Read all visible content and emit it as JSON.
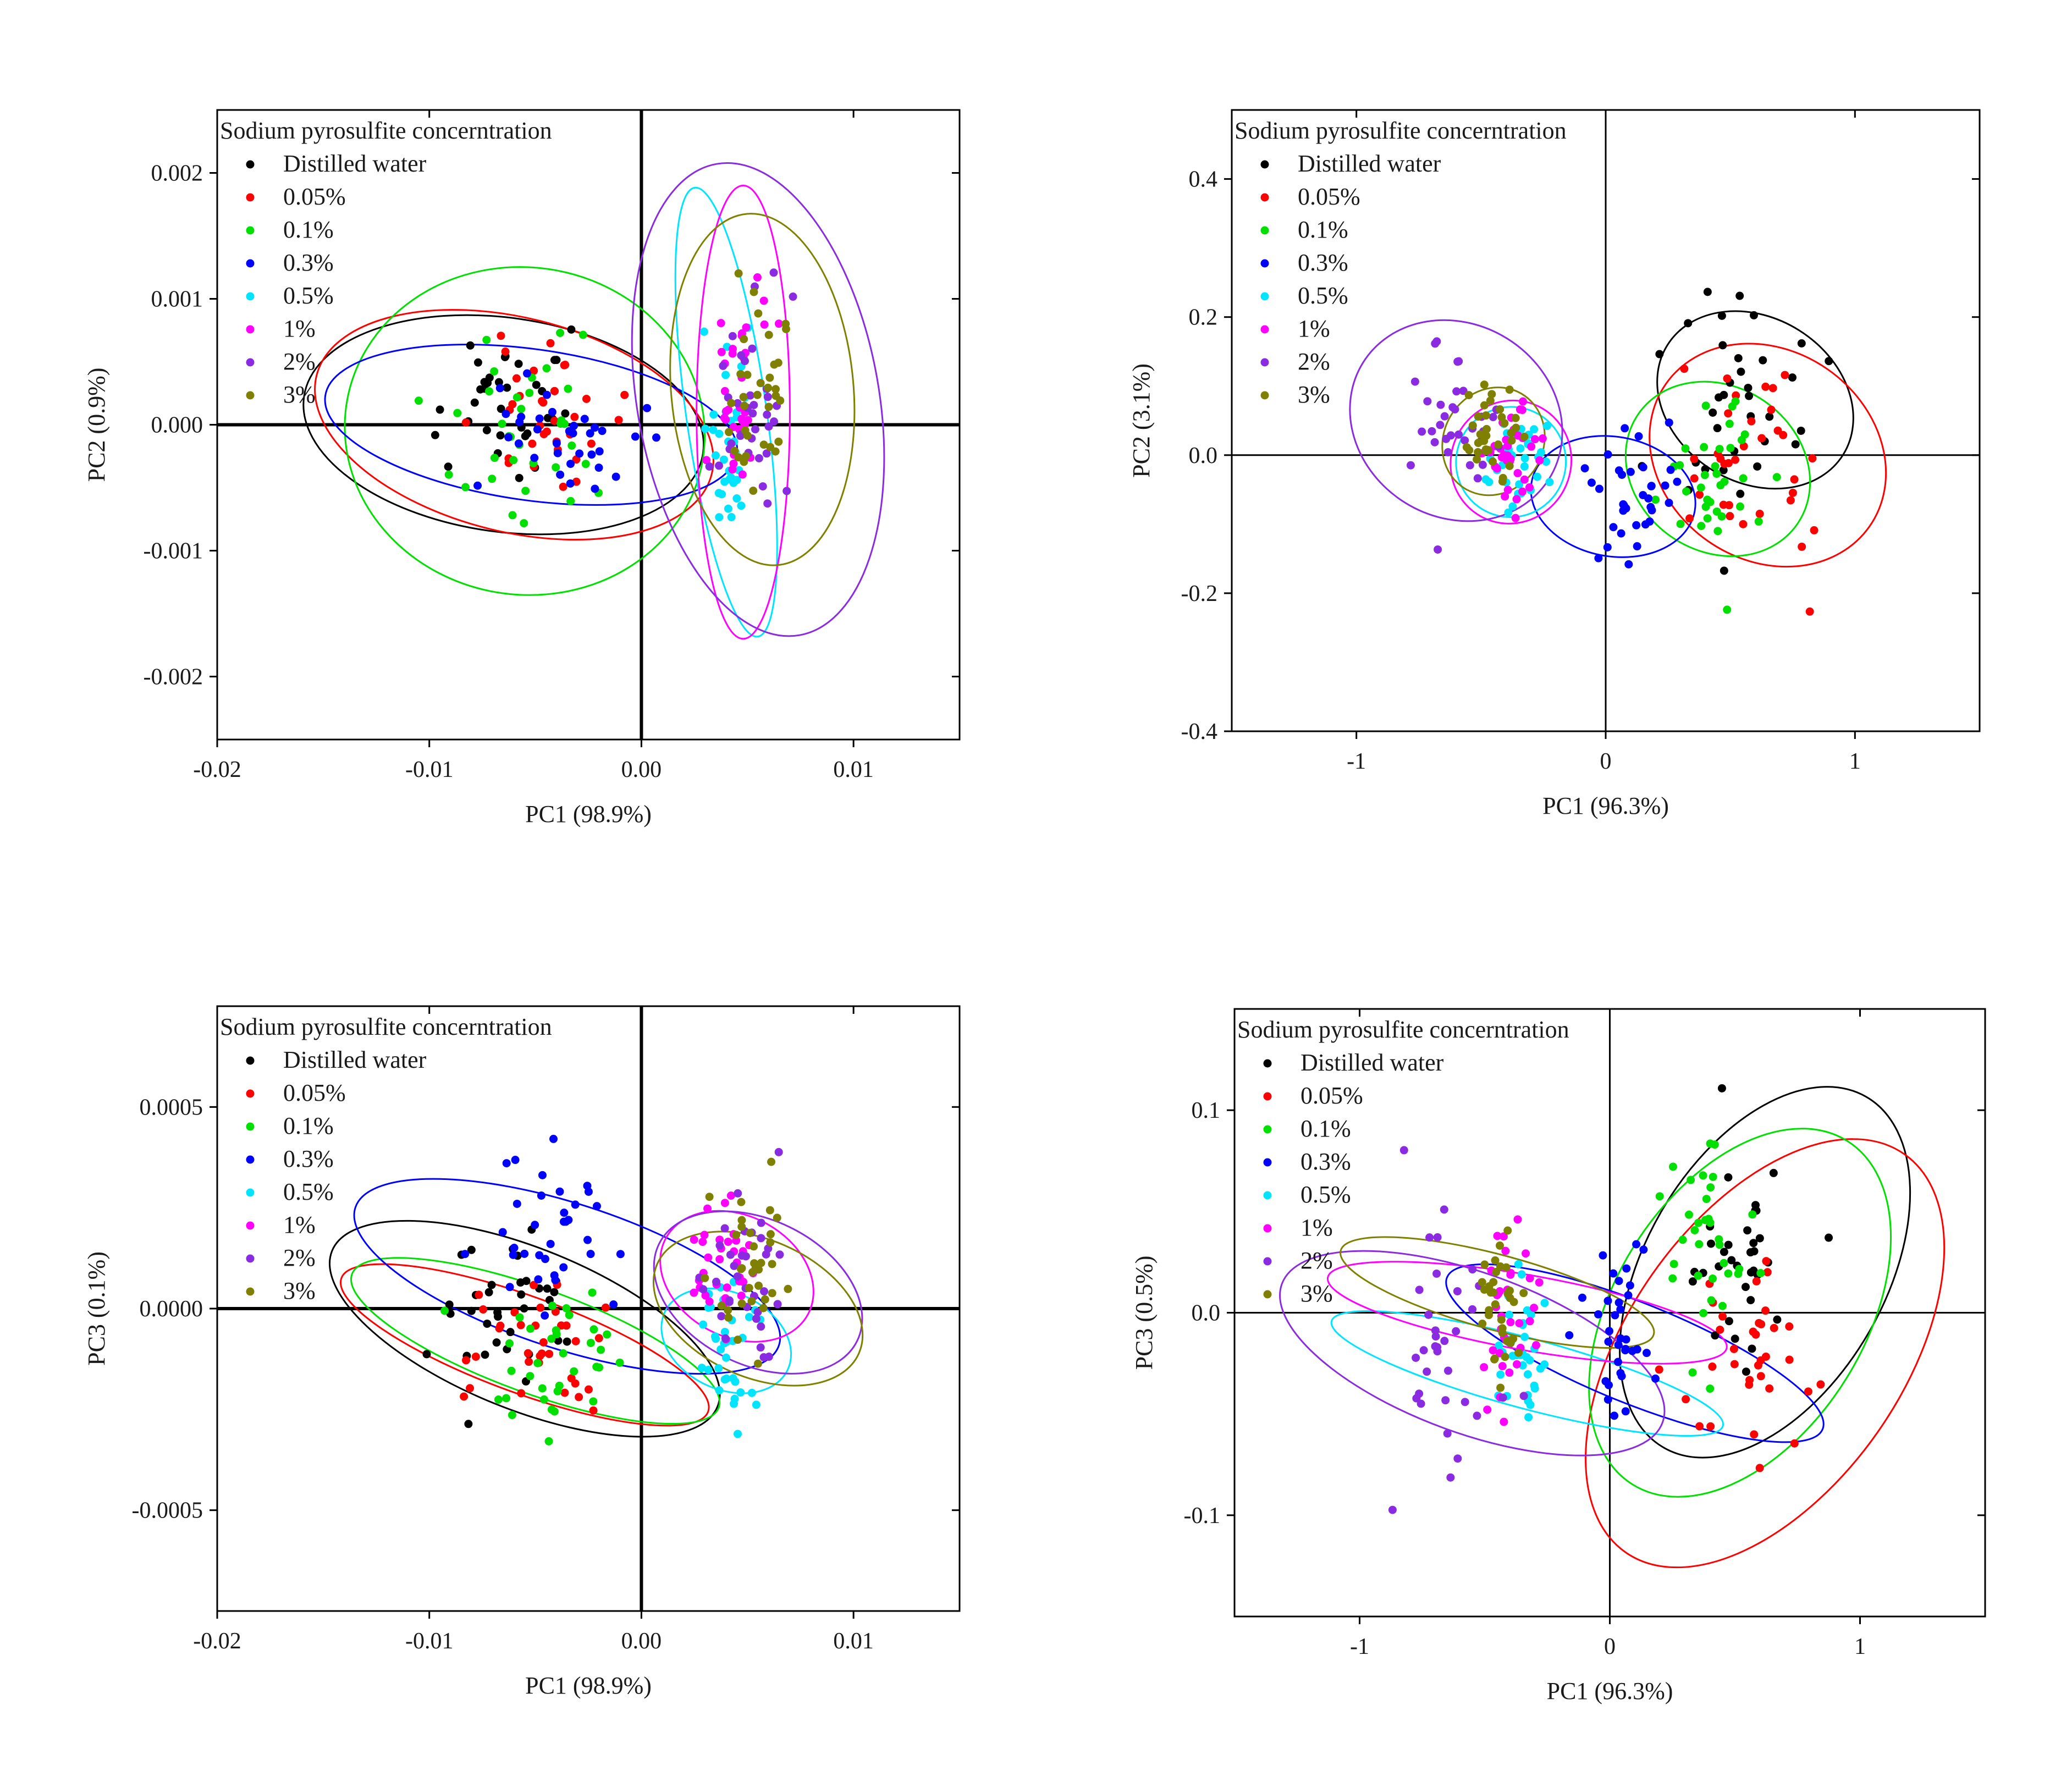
{
  "figure": {
    "legend_title": "Sodium pyrosulfite concerntration",
    "groups": [
      {
        "label": "Distilled water",
        "color": "#000000"
      },
      {
        "label": "0.05%",
        "color": "#ff0000"
      },
      {
        "label": "0.1%",
        "color": "#00e000"
      },
      {
        "label": "0.3%",
        "color": "#0000ff"
      },
      {
        "label": "0.5%",
        "color": "#00e5ff"
      },
      {
        "label": "1%",
        "color": "#ff00ff"
      },
      {
        "label": "2%",
        "color": "#8a2be2"
      },
      {
        "label": "3%",
        "color": "#808000"
      }
    ]
  },
  "chart_data": [
    {
      "type": "scatter",
      "id": "top-left",
      "xlabel": "PC1 (98.9%)",
      "ylabel": "PC2 (0.9%)",
      "xlim": [
        -0.02,
        0.015
      ],
      "ylim": [
        -0.0025,
        0.0025
      ],
      "xticks": [
        -0.02,
        -0.01,
        0.0,
        0.01
      ],
      "xtick_labels": [
        "-0.02",
        "-0.01",
        "0.00",
        "0.01"
      ],
      "yticks": [
        -0.002,
        -0.001,
        0.0,
        0.001,
        0.002
      ],
      "ytick_labels": [
        "-0.002",
        "-0.001",
        "0.000",
        "0.001",
        "0.002"
      ],
      "zero_lines": "bold",
      "series": [
        {
          "name": "Distilled water",
          "center": [
            -0.0065,
            0.0002
          ],
          "spread": [
            0.003,
            0.0003
          ],
          "count": 34,
          "ellipse": {
            "center": [
              -0.0065,
              0.0
            ],
            "rx": 0.0095,
            "ry": 0.00085,
            "angle": -8
          }
        },
        {
          "name": "0.05%",
          "center": [
            -0.0045,
            0.0001
          ],
          "spread": [
            0.003,
            0.0003
          ],
          "count": 34,
          "ellipse": {
            "center": [
              -0.006,
              0.0
            ],
            "rx": 0.0096,
            "ry": 0.00085,
            "angle": -14
          }
        },
        {
          "name": "0.1%",
          "center": [
            -0.0055,
            -0.0001
          ],
          "spread": [
            0.0033,
            0.0004
          ],
          "count": 34,
          "ellipse": {
            "center": [
              -0.0055,
              -5e-05
            ],
            "rx": 0.0085,
            "ry": 0.0013,
            "angle": -8
          }
        },
        {
          "name": "0.3%",
          "center": [
            -0.0035,
            -0.0001
          ],
          "spread": [
            0.0032,
            0.00025
          ],
          "count": 34,
          "ellipse": {
            "center": [
              -0.0052,
              0.0
            ],
            "rx": 0.0098,
            "ry": 0.0006,
            "angle": -8
          }
        },
        {
          "name": "0.5%",
          "center": [
            0.0042,
            -0.0001
          ],
          "spread": [
            0.0011,
            0.0004
          ],
          "count": 34,
          "ellipse": {
            "center": [
              0.004,
              0.0001
            ],
            "rx": 0.0019,
            "ry": 0.0018,
            "angle": 8
          }
        },
        {
          "name": "1%",
          "center": [
            0.0045,
            0.0002
          ],
          "spread": [
            0.0011,
            0.00045
          ],
          "count": 34,
          "ellipse": {
            "center": [
              0.0048,
              0.0001
            ],
            "rx": 0.0022,
            "ry": 0.0018,
            "angle": 0
          }
        },
        {
          "name": "2%",
          "center": [
            0.0052,
            0.0002
          ],
          "spread": [
            0.0014,
            0.00045
          ],
          "count": 34,
          "ellipse": {
            "center": [
              0.0055,
              0.0002
            ],
            "rx": 0.0057,
            "ry": 0.0019,
            "angle": 10
          }
        },
        {
          "name": "3%",
          "center": [
            0.0055,
            0.0003
          ],
          "spread": [
            0.0012,
            0.00045
          ],
          "count": 34,
          "ellipse": {
            "center": [
              0.0057,
              0.00028
            ],
            "rx": 0.0043,
            "ry": 0.0014,
            "angle": 5
          }
        }
      ]
    },
    {
      "type": "scatter",
      "id": "top-right",
      "xlabel": "PC1 (96.3%)",
      "ylabel": "PC2 (3.1%)",
      "xlim": [
        -1.5,
        1.5
      ],
      "ylim": [
        -0.4,
        0.5
      ],
      "xticks": [
        -1,
        0,
        1
      ],
      "xtick_labels": [
        "-1",
        "0",
        "1"
      ],
      "yticks": [
        -0.4,
        -0.2,
        0.0,
        0.2,
        0.4
      ],
      "ytick_labels": [
        "-0.4",
        "-0.2",
        "0.0",
        "0.2",
        "0.4"
      ],
      "zero_lines": "thin",
      "series": [
        {
          "name": "Distilled water",
          "center": [
            0.55,
            0.05
          ],
          "spread": [
            0.22,
            0.1
          ],
          "count": 34,
          "ellipse": {
            "center": [
              0.6,
              0.08
            ],
            "rx": 0.33,
            "ry": 0.15,
            "angle": 58
          }
        },
        {
          "name": "0.05%",
          "center": [
            0.6,
            0.0
          ],
          "spread": [
            0.2,
            0.09
          ],
          "count": 34,
          "ellipse": {
            "center": [
              0.65,
              0.0
            ],
            "rx": 0.42,
            "ry": 0.18,
            "angle": 55
          }
        },
        {
          "name": "0.1%",
          "center": [
            0.45,
            -0.03
          ],
          "spread": [
            0.18,
            0.07
          ],
          "count": 34,
          "ellipse": {
            "center": [
              0.45,
              -0.02
            ],
            "rx": 0.33,
            "ry": 0.14,
            "angle": 55
          }
        },
        {
          "name": "0.3%",
          "center": [
            0.1,
            -0.05
          ],
          "spread": [
            0.15,
            0.07
          ],
          "count": 34,
          "ellipse": {
            "center": [
              0.03,
              -0.06
            ],
            "rx": 0.24,
            "ry": 0.12,
            "angle": 80
          }
        },
        {
          "name": "0.5%",
          "center": [
            -0.35,
            -0.02
          ],
          "spread": [
            0.1,
            0.04
          ],
          "count": 34,
          "ellipse": {
            "center": [
              -0.38,
              -0.01
            ],
            "rx": 0.22,
            "ry": 0.08,
            "angle": -30
          }
        },
        {
          "name": "1%",
          "center": [
            -0.4,
            0.0
          ],
          "spread": [
            0.1,
            0.05
          ],
          "count": 34,
          "ellipse": {
            "center": [
              -0.38,
              -0.01
            ],
            "rx": 0.24,
            "ry": 0.09,
            "angle": -30
          }
        },
        {
          "name": "2%",
          "center": [
            -0.6,
            0.05
          ],
          "spread": [
            0.2,
            0.07
          ],
          "count": 34,
          "ellipse": {
            "center": [
              -0.6,
              0.05
            ],
            "rx": 0.44,
            "ry": 0.14,
            "angle": -32
          }
        },
        {
          "name": "3%",
          "center": [
            -0.45,
            0.02
          ],
          "spread": [
            0.09,
            0.04
          ],
          "count": 34,
          "ellipse": {
            "center": [
              -0.45,
              0.02
            ],
            "rx": 0.2,
            "ry": 0.08,
            "angle": -30
          }
        }
      ]
    },
    {
      "type": "scatter",
      "id": "bottom-left",
      "xlabel": "PC1 (98.9%)",
      "ylabel": "PC3 (0.1%)",
      "xlim": [
        -0.02,
        0.015
      ],
      "ylim": [
        -0.00075,
        0.00075
      ],
      "xticks": [
        -0.02,
        -0.01,
        0.0,
        0.01
      ],
      "xtick_labels": [
        "-0.02",
        "-0.01",
        "0.00",
        "0.01"
      ],
      "yticks": [
        -0.0005,
        0.0,
        0.0005
      ],
      "ytick_labels": [
        "-0.0005",
        "0.0000",
        "0.0005"
      ],
      "zero_lines": "bold",
      "series": [
        {
          "name": "Distilled water",
          "center": [
            -0.006,
            0.0
          ],
          "spread": [
            0.003,
            0.00012
          ],
          "count": 34,
          "ellipse": {
            "center": [
              -0.0055,
              -5e-05
            ],
            "rx": 0.0098,
            "ry": 0.0002,
            "angle": -22
          }
        },
        {
          "name": "0.05%",
          "center": [
            -0.005,
            -0.0001
          ],
          "spread": [
            0.003,
            0.0001
          ],
          "count": 34,
          "ellipse": {
            "center": [
              -0.0055,
              -9e-05
            ],
            "rx": 0.0092,
            "ry": 0.00012,
            "angle": -20
          }
        },
        {
          "name": "0.1%",
          "center": [
            -0.004,
            -0.0001
          ],
          "spread": [
            0.003,
            0.0001
          ],
          "count": 34,
          "ellipse": {
            "center": [
              -0.005,
              -8e-05
            ],
            "rx": 0.0092,
            "ry": 0.00013,
            "angle": -20
          }
        },
        {
          "name": "0.3%",
          "center": [
            -0.004,
            0.0002
          ],
          "spread": [
            0.003,
            0.00012
          ],
          "count": 34,
          "ellipse": {
            "center": [
              -0.0035,
              8e-05
            ],
            "rx": 0.0105,
            "ry": 0.00018,
            "angle": -18
          }
        },
        {
          "name": "0.5%",
          "center": [
            0.004,
            -0.0001
          ],
          "spread": [
            0.0012,
            0.0001
          ],
          "count": 34,
          "ellipse": {
            "center": [
              0.004,
              -8e-05
            ],
            "rx": 0.0032,
            "ry": 0.00012,
            "angle": -25
          }
        },
        {
          "name": "1%",
          "center": [
            0.004,
            0.0001
          ],
          "spread": [
            0.0012,
            0.0001
          ],
          "count": 34,
          "ellipse": {
            "center": [
              0.0045,
              8e-05
            ],
            "rx": 0.0038,
            "ry": 0.00015,
            "angle": -28
          }
        },
        {
          "name": "2%",
          "center": [
            0.005,
            0.0001
          ],
          "spread": [
            0.0015,
            0.00012
          ],
          "count": 34,
          "ellipse": {
            "center": [
              0.0055,
              4e-05
            ],
            "rx": 0.0052,
            "ry": 0.00018,
            "angle": -26
          }
        },
        {
          "name": "3%",
          "center": [
            0.005,
            0.0001
          ],
          "spread": [
            0.0015,
            0.00012
          ],
          "count": 34,
          "ellipse": {
            "center": [
              0.0055,
              0.0
            ],
            "rx": 0.0052,
            "ry": 0.00017,
            "angle": -24
          }
        }
      ]
    },
    {
      "type": "scatter",
      "id": "bottom-right",
      "xlabel": "PC1 (96.3%)",
      "ylabel": "PC3 (0.5%)",
      "xlim": [
        -1.5,
        1.5
      ],
      "ylim": [
        -0.15,
        0.15
      ],
      "xticks": [
        -1,
        0,
        1
      ],
      "xtick_labels": [
        "-1",
        "0",
        "1"
      ],
      "yticks": [
        -0.1,
        0.0,
        0.1
      ],
      "ytick_labels": [
        "-0.1",
        "0.0",
        "0.1"
      ],
      "zero_lines": "thin",
      "series": [
        {
          "name": "Distilled water",
          "center": [
            0.55,
            0.03
          ],
          "spread": [
            0.2,
            0.03
          ],
          "count": 34,
          "ellipse": {
            "center": [
              0.62,
              0.02
            ],
            "rx": 0.48,
            "ry": 0.1,
            "angle": -30
          }
        },
        {
          "name": "0.05%",
          "center": [
            0.55,
            -0.02
          ],
          "spread": [
            0.2,
            0.03
          ],
          "count": 34,
          "ellipse": {
            "center": [
              0.62,
              -0.02
            ],
            "rx": 0.55,
            "ry": 0.12,
            "angle": -35
          }
        },
        {
          "name": "0.1%",
          "center": [
            0.4,
            0.02
          ],
          "spread": [
            0.2,
            0.03
          ],
          "count": 34,
          "ellipse": {
            "center": [
              0.52,
              0.0
            ],
            "rx": 0.5,
            "ry": 0.1,
            "angle": -32
          }
        },
        {
          "name": "0.3%",
          "center": [
            0.05,
            -0.01
          ],
          "spread": [
            0.15,
            0.03
          ],
          "count": 34,
          "ellipse": {
            "center": [
              0.1,
              -0.02
            ],
            "rx": 0.2,
            "ry": 0.1,
            "angle": 68
          }
        },
        {
          "name": "0.5%",
          "center": [
            -0.35,
            -0.02
          ],
          "spread": [
            0.1,
            0.02
          ],
          "count": 34,
          "ellipse": {
            "center": [
              -0.33,
              -0.03
            ],
            "rx": 0.14,
            "ry": 0.1,
            "angle": 75
          }
        },
        {
          "name": "1%",
          "center": [
            -0.4,
            0.0
          ],
          "spread": [
            0.1,
            0.025
          ],
          "count": 34,
          "ellipse": {
            "center": [
              -0.33,
              0.0
            ],
            "rx": 0.15,
            "ry": 0.1,
            "angle": 80
          }
        },
        {
          "name": "2%",
          "center": [
            -0.65,
            -0.01
          ],
          "spread": [
            0.18,
            0.035
          ],
          "count": 34,
          "ellipse": {
            "center": [
              -0.55,
              -0.02
            ],
            "rx": 0.32,
            "ry": 0.1,
            "angle": 70
          }
        },
        {
          "name": "3%",
          "center": [
            -0.45,
            0.0
          ],
          "spread": [
            0.08,
            0.02
          ],
          "count": 34,
          "ellipse": {
            "center": [
              -0.45,
              0.01
            ],
            "rx": 0.15,
            "ry": 0.08,
            "angle": 75
          }
        }
      ]
    }
  ]
}
